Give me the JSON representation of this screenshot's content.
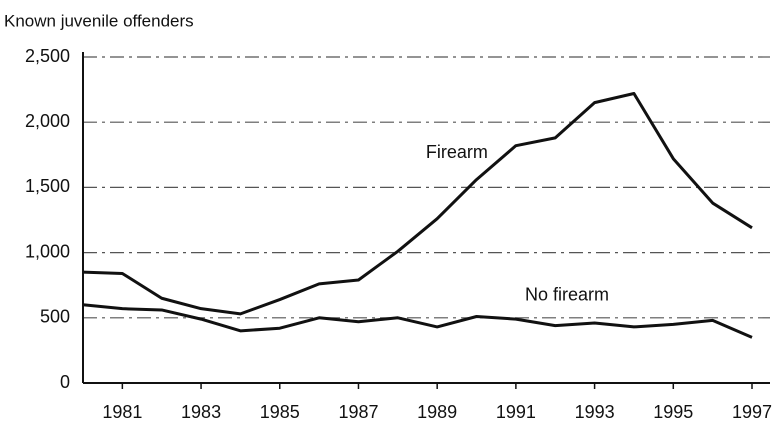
{
  "chart_data": {
    "type": "line",
    "y_axis_label": "Known juvenile offenders",
    "x": [
      1980,
      1981,
      1982,
      1983,
      1984,
      1985,
      1986,
      1987,
      1988,
      1989,
      1990,
      1991,
      1992,
      1993,
      1994,
      1995,
      1996,
      1997
    ],
    "series": [
      {
        "name": "Firearm",
        "color": "#111111",
        "values": [
          850,
          840,
          650,
          570,
          530,
          640,
          760,
          790,
          1010,
          1260,
          1560,
          1820,
          1880,
          2150,
          2220,
          1720,
          1380,
          1190
        ]
      },
      {
        "name": "No firearm",
        "color": "#111111",
        "values": [
          600,
          570,
          560,
          490,
          400,
          420,
          500,
          470,
          500,
          430,
          510,
          490,
          440,
          460,
          430,
          450,
          480,
          350
        ]
      }
    ],
    "xlim": [
      1980,
      1997
    ],
    "xticks": [
      1981,
      1983,
      1985,
      1987,
      1989,
      1991,
      1993,
      1995,
      1997
    ],
    "ylim": [
      0,
      2500
    ],
    "yticks": [
      0,
      500,
      {
        "value": 1000,
        "label": "1,000"
      },
      {
        "value": 1500,
        "label": "1,500"
      },
      {
        "value": 2000,
        "label": "2,000"
      },
      {
        "value": 2500,
        "label": "2,500"
      }
    ],
    "grid": true
  }
}
